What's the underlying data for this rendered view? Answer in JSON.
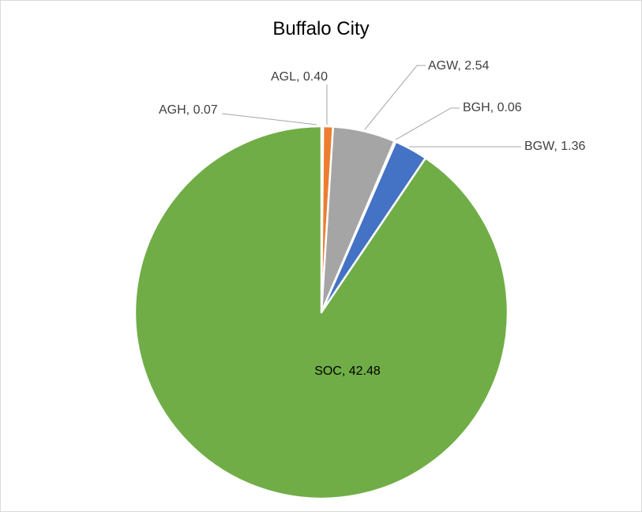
{
  "chart_data": {
    "type": "pie",
    "title": "Buffalo City",
    "slices": [
      {
        "name": "AGH",
        "value": 0.07,
        "color": "#4472c4",
        "label": "AGH, 0.07"
      },
      {
        "name": "AGL",
        "value": 0.4,
        "color": "#ed7d31",
        "label": "AGL, 0.40"
      },
      {
        "name": "AGW",
        "value": 2.54,
        "color": "#a5a5a5",
        "label": "AGW, 2.54"
      },
      {
        "name": "BGH",
        "value": 0.06,
        "color": "#ffc000",
        "label": "BGH, 0.06"
      },
      {
        "name": "BGW",
        "value": 1.36,
        "color": "#4472c4",
        "label": "BGW, 1.36"
      },
      {
        "name": "SOC",
        "value": 42.48,
        "color": "#70ad47",
        "label": "SOC, 42.48"
      }
    ],
    "legend": "none",
    "start_angle": "12 o'clock, clockwise"
  }
}
